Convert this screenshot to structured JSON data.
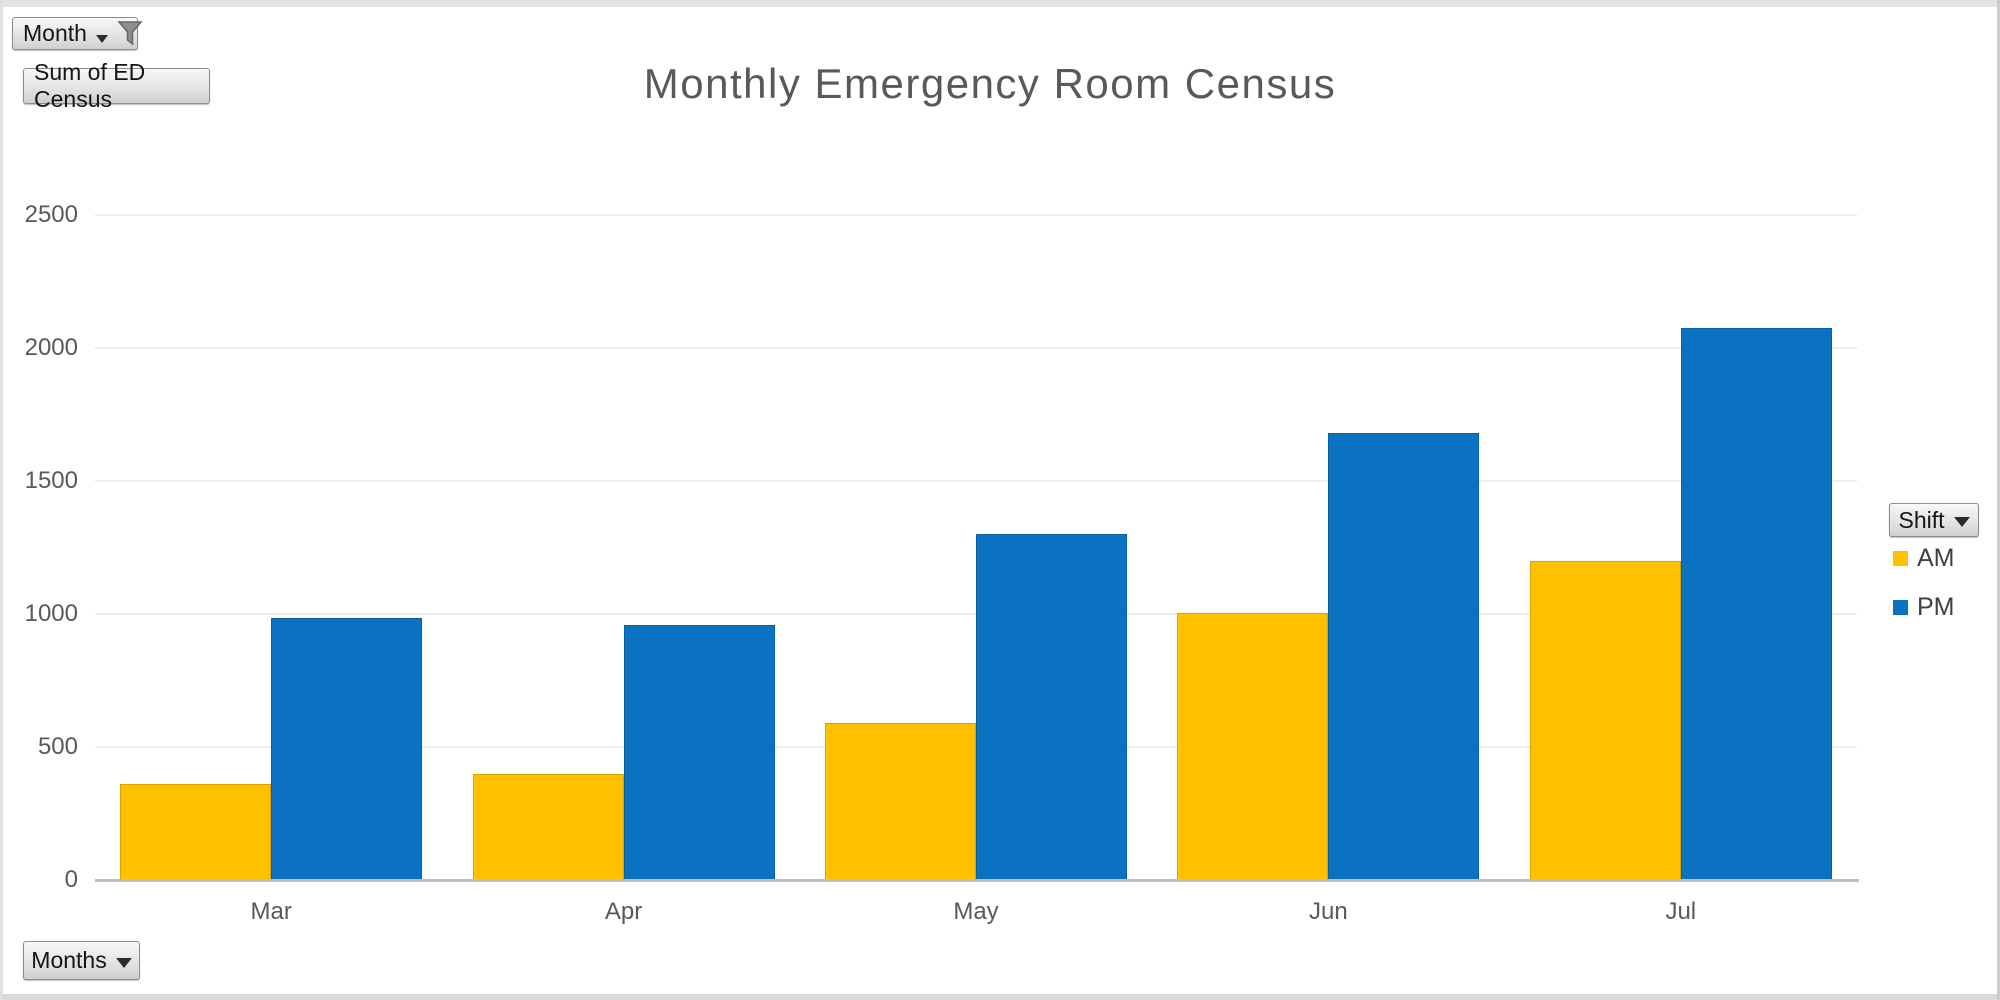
{
  "chart_data": {
    "type": "bar",
    "title": "Monthly Emergency Room Census",
    "categories": [
      "Mar",
      "Apr",
      "May",
      "Jun",
      "Jul"
    ],
    "series": [
      {
        "name": "AM",
        "color": "#FFC000",
        "values": [
          360,
          400,
          590,
          1005,
          1200
        ]
      },
      {
        "name": "PM",
        "color": "#0B72C2",
        "values": [
          985,
          960,
          1300,
          1680,
          2075
        ]
      }
    ],
    "xlabel": "",
    "ylabel": "",
    "ylim": [
      0,
      2500
    ],
    "yticks": [
      0,
      500,
      1000,
      1500,
      2000,
      2500
    ],
    "grid": true,
    "legend_position": "right"
  },
  "field_buttons": {
    "month_filter": {
      "label": "Month",
      "filter_applied": true
    },
    "value_field": {
      "label": "Sum of ED Census"
    },
    "legend_field": {
      "label": "Shift"
    },
    "axis_field": {
      "label": "Months"
    }
  },
  "colors": {
    "am": "#FFC000",
    "pm": "#0B72C2",
    "axis_text": "#595959",
    "gridline": "#EDEDED",
    "axis_line": "#BFBFBF"
  }
}
